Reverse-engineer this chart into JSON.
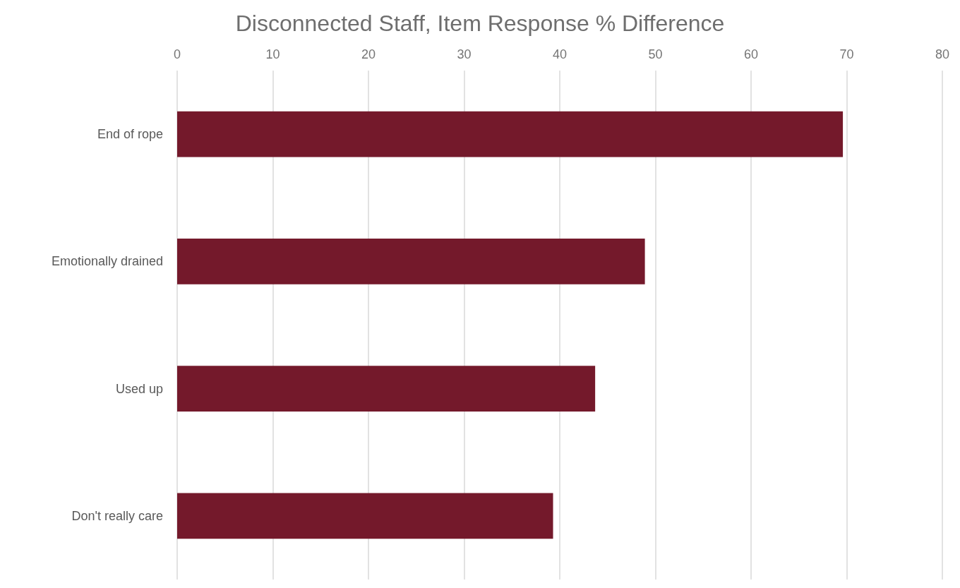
{
  "chart_data": {
    "type": "bar",
    "orientation": "horizontal",
    "title": "Disconnected Staff, Item Response % Difference",
    "categories": [
      "End of rope",
      "Emotionally drained",
      "Used up",
      "Don't really care"
    ],
    "values": [
      69.6,
      48.9,
      43.7,
      39.3
    ],
    "color": "#74192b",
    "xlim": [
      0,
      80
    ],
    "xticks": [
      0,
      10,
      20,
      30,
      40,
      50,
      60,
      70,
      80
    ],
    "grid": "x"
  }
}
